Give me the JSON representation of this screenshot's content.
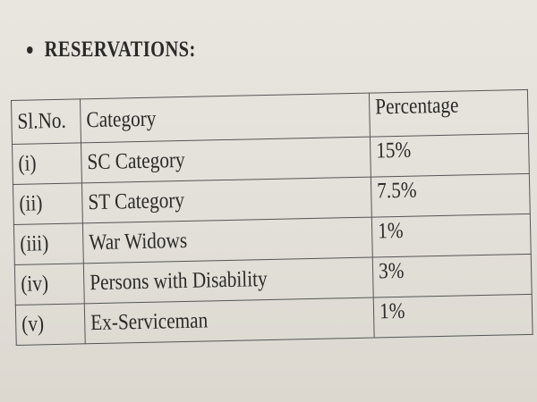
{
  "header": {
    "title": "RESERVATIONS:"
  },
  "table": {
    "columns": [
      "Sl.No.",
      "Category",
      "Percentage"
    ],
    "rows": [
      [
        "(i)",
        "SC Category",
        "15%"
      ],
      [
        "(ii)",
        "ST Category",
        "7.5%"
      ],
      [
        "(iii)",
        "War Widows",
        "1%"
      ],
      [
        "(iv)",
        "Persons with Disability",
        "3%"
      ],
      [
        "(v)",
        "Ex-Serviceman",
        "1%"
      ]
    ]
  }
}
